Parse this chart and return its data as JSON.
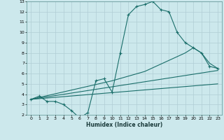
{
  "xlabel": "Humidex (Indice chaleur)",
  "ylabel": "",
  "bg_color": "#cce8ec",
  "grid_color": "#b0cdd4",
  "line_color": "#1a6e6a",
  "xlim": [
    -0.5,
    23.5
  ],
  "ylim": [
    2,
    13
  ],
  "xticks": [
    0,
    1,
    2,
    3,
    4,
    5,
    6,
    7,
    8,
    9,
    10,
    11,
    12,
    13,
    14,
    15,
    16,
    17,
    18,
    19,
    20,
    21,
    22,
    23
  ],
  "yticks": [
    2,
    3,
    4,
    5,
    6,
    7,
    8,
    9,
    10,
    11,
    12,
    13
  ],
  "curve1_x": [
    0,
    1,
    2,
    3,
    4,
    5,
    6,
    7,
    8,
    9,
    10,
    11,
    12,
    13,
    14,
    15,
    16,
    17,
    18,
    19,
    20,
    21,
    22,
    23
  ],
  "curve1_y": [
    3.5,
    3.8,
    3.3,
    3.3,
    3.0,
    2.4,
    1.7,
    2.2,
    5.3,
    5.5,
    4.2,
    8.0,
    11.7,
    12.5,
    12.7,
    13.0,
    12.2,
    12.0,
    10.0,
    9.0,
    8.5,
    8.0,
    6.7,
    6.5
  ],
  "curve2_x": [
    0,
    10,
    14,
    19,
    20,
    21,
    22,
    23
  ],
  "curve2_y": [
    3.5,
    5.3,
    6.2,
    8.0,
    8.5,
    8.0,
    7.0,
    6.5
  ],
  "curve3_x": [
    0,
    23
  ],
  "curve3_y": [
    3.5,
    6.3
  ],
  "curve4_x": [
    0,
    23
  ],
  "curve4_y": [
    3.5,
    5.0
  ],
  "marker": "+"
}
